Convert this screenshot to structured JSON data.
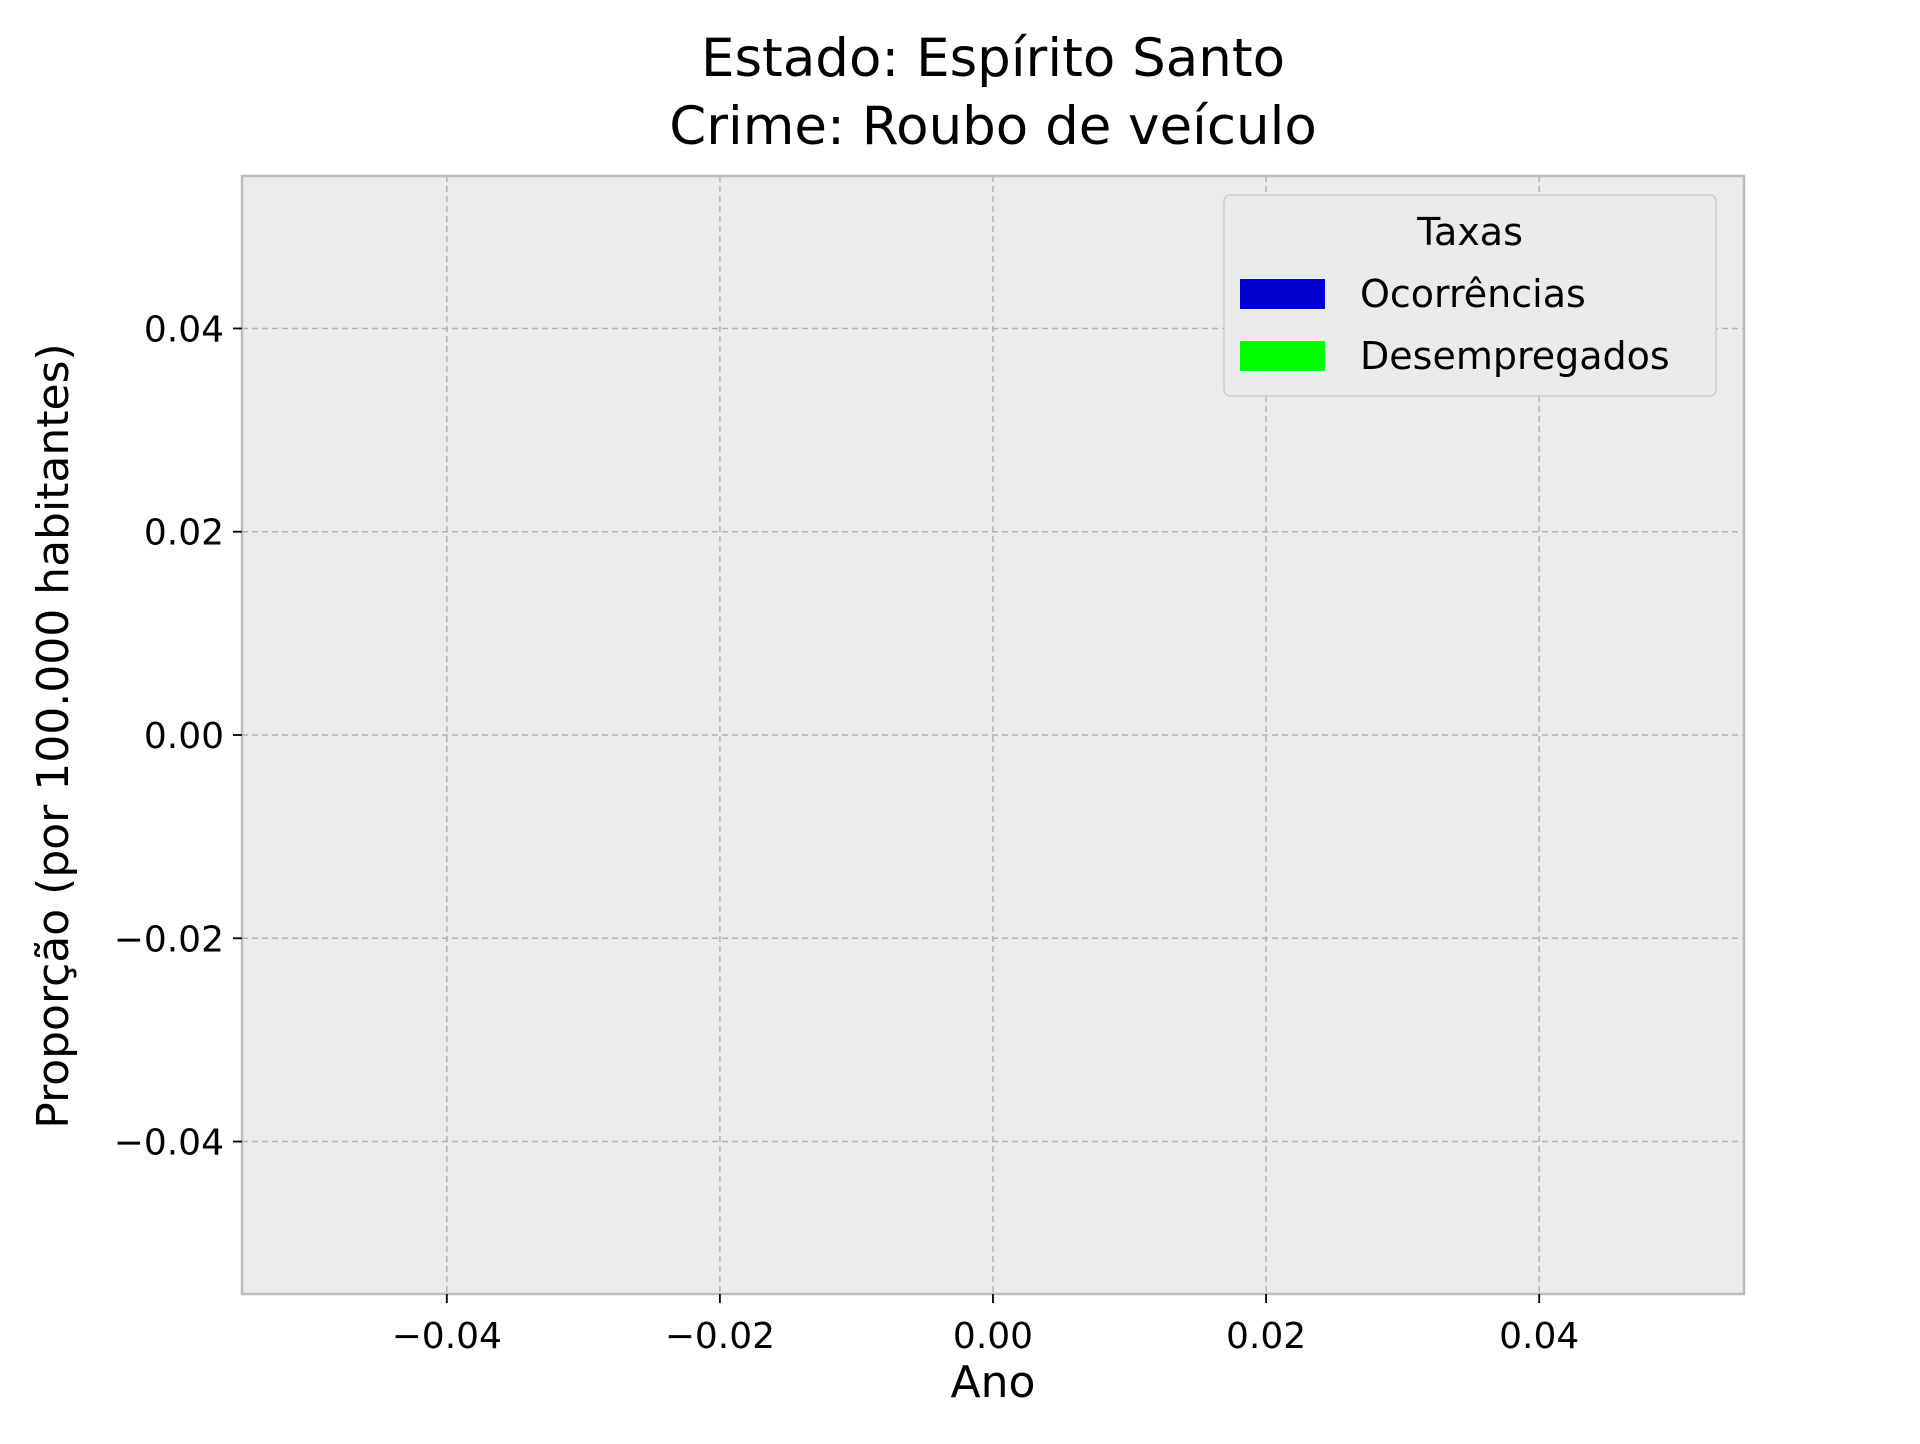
{
  "chart_data": {
    "type": "bar",
    "title_lines": [
      "Estado: Espírito Santo",
      "Crime: Roubo de veículo"
    ],
    "xlabel": "Ano",
    "ylabel": "Proporção (por 100.000 habitantes)",
    "xlim": [
      -0.055,
      0.055
    ],
    "ylim": [
      -0.055,
      0.055
    ],
    "xticks": [
      -0.04,
      -0.02,
      0.0,
      0.02,
      0.04
    ],
    "yticks": [
      -0.04,
      -0.02,
      0.0,
      0.02,
      0.04
    ],
    "xtick_labels": [
      "−0.04",
      "−0.02",
      "0.00",
      "0.02",
      "0.04"
    ],
    "ytick_labels": [
      "−0.04",
      "−0.02",
      "0.00",
      "0.02",
      "0.04"
    ],
    "grid": true,
    "legend": {
      "title": "Taxas",
      "placement": "top-right",
      "entries": [
        {
          "label": "Ocorrências",
          "color": "#0000cc"
        },
        {
          "label": "Desempregados",
          "color": "#00ff00"
        }
      ]
    },
    "series": [
      {
        "name": "Ocorrências",
        "color": "#0000cc",
        "values": []
      },
      {
        "name": "Desempregados",
        "color": "#00ff00",
        "values": []
      }
    ],
    "colors": {
      "plot_background": "#ececec",
      "frame": "#bcbcbc",
      "grid": "#b0b0b0"
    }
  }
}
